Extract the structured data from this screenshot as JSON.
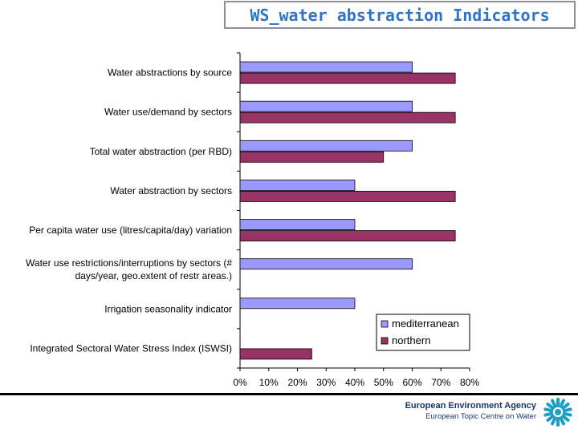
{
  "header": {
    "title": "WS_water abstraction Indicators"
  },
  "chart_data": {
    "type": "bar",
    "orientation": "horizontal",
    "categories": [
      [
        "Water abstractions by source"
      ],
      [
        "Water use/demand by sectors"
      ],
      [
        "Total water abstraction (per RBD)"
      ],
      [
        "Water abstraction by sectors"
      ],
      [
        "Per capita water use (litres/capita/day) variation"
      ],
      [
        "Water use restrictions/interruptions by sectors (#",
        "days/year, geo.extent of restr areas.)"
      ],
      [
        "Irrigation seasonality indicator"
      ],
      [
        "Integrated Sectoral Water Stress Index (ISWSI)"
      ]
    ],
    "series": [
      {
        "name": "mediterranean",
        "color": "#9999ff",
        "values": [
          60,
          60,
          60,
          40,
          40,
          60,
          40,
          null
        ]
      },
      {
        "name": "northern",
        "color": "#993366",
        "values": [
          75,
          75,
          50,
          75,
          75,
          null,
          null,
          25
        ]
      }
    ],
    "xlim": [
      0,
      80
    ],
    "xticks": [
      0,
      10,
      20,
      30,
      40,
      50,
      60,
      70,
      80
    ],
    "tick_suffix": "%",
    "grid": false,
    "legend_position": "bottom-right"
  },
  "footer": {
    "agency": "European Environment Agency",
    "centre": "European Topic Centre on Water"
  }
}
